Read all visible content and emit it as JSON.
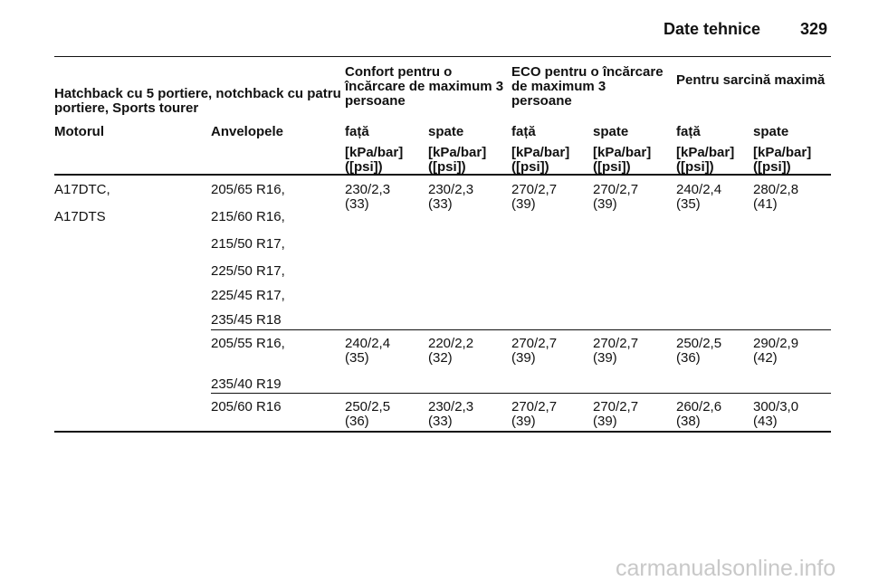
{
  "header": {
    "title": "Date tehnice",
    "page": "329"
  },
  "table": {
    "group_header": [
      "Hatchback cu 5 portiere, notchback cu patru portiere, Sports tourer",
      "Confort pentru o încărcare de maximum 3 persoane",
      "ECO pentru o încărcare de maximum 3 persoane",
      "Pentru sarcină maximă"
    ],
    "columns": [
      "Motorul",
      "Anvelopele",
      "față",
      "spate",
      "față",
      "spate",
      "față",
      "spate"
    ],
    "units": [
      [
        "[kPa/bar]",
        "([psi])"
      ],
      [
        "[kPa/bar]",
        "([psi])"
      ],
      [
        "[kPa/bar]",
        "([psi])"
      ],
      [
        "[kPa/bar]",
        "([psi])"
      ],
      [
        "[kPa/bar]",
        "([psi])"
      ],
      [
        "[kPa/bar]",
        "([psi])"
      ]
    ],
    "rows": [
      {
        "motor": [
          "A17DTC,",
          "A17DTS"
        ],
        "tires": [
          "205/65 R16,",
          "215/60 R16,",
          "215/50 R17,",
          "225/50 R17,",
          "225/45 R17,",
          "235/45 R18"
        ],
        "values": [
          [
            "230/2,3",
            "(33)"
          ],
          [
            "230/2,3",
            "(33)"
          ],
          [
            "270/2,7",
            "(39)"
          ],
          [
            "270/2,7",
            "(39)"
          ],
          [
            "240/2,4",
            "(35)"
          ],
          [
            "280/2,8",
            "(41)"
          ]
        ]
      },
      {
        "tires": [
          "205/55 R16,",
          "235/40 R19"
        ],
        "values": [
          [
            "240/2,4",
            "(35)"
          ],
          [
            "220/2,2",
            "(32)"
          ],
          [
            "270/2,7",
            "(39)"
          ],
          [
            "270/2,7",
            "(39)"
          ],
          [
            "250/2,5",
            "(36)"
          ],
          [
            "290/2,9",
            "(42)"
          ]
        ]
      },
      {
        "tires": [
          "205/60 R16"
        ],
        "values": [
          [
            "250/2,5",
            "(36)"
          ],
          [
            "230/2,3",
            "(33)"
          ],
          [
            "270/2,7",
            "(39)"
          ],
          [
            "270/2,7",
            "(39)"
          ],
          [
            "260/2,6",
            "(38)"
          ],
          [
            "300/3,0",
            "(43)"
          ]
        ]
      }
    ]
  },
  "watermark": "carmanualsonline.info"
}
